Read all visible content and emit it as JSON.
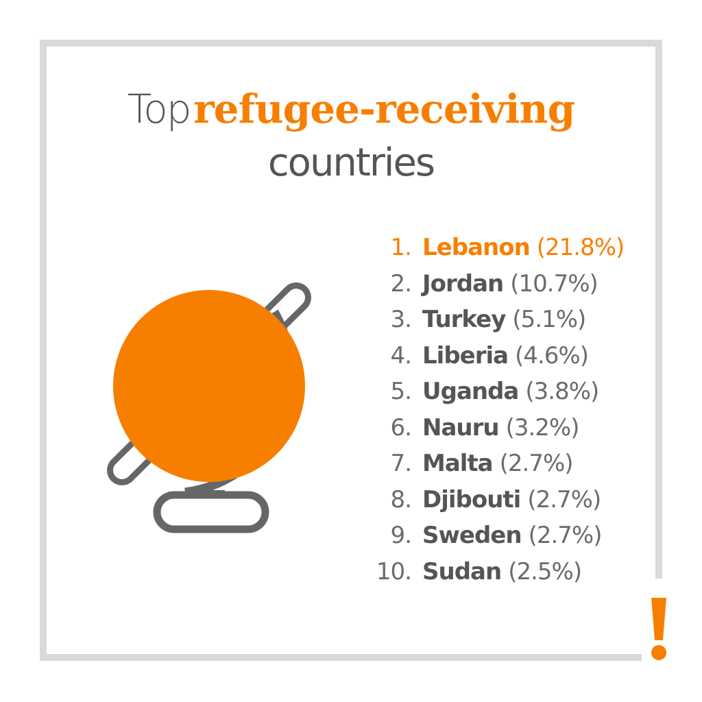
{
  "title": {
    "light": "Top",
    "accent": "refugee-receiving",
    "line2": "countries"
  },
  "colors": {
    "accent": "#f77f00",
    "text": "#555555",
    "frame": "#d9d9d9",
    "globe_stroke": "#666666"
  },
  "ranking": [
    {
      "rank": "1.",
      "country": "Lebanon",
      "share": "(21.8%)",
      "highlight": true
    },
    {
      "rank": "2.",
      "country": "Jordan",
      "share": "(10.7%)"
    },
    {
      "rank": "3.",
      "country": "Turkey",
      "share": "(5.1%)"
    },
    {
      "rank": "4.",
      "country": "Liberia",
      "share": "(4.6%)"
    },
    {
      "rank": "5.",
      "country": "Uganda",
      "share": "(3.8%)"
    },
    {
      "rank": "6.",
      "country": "Nauru",
      "share": "(3.2%)"
    },
    {
      "rank": "7.",
      "country": "Malta",
      "share": "(2.7%)"
    },
    {
      "rank": "8.",
      "country": "Djibouti",
      "share": "(2.7%)"
    },
    {
      "rank": "9.",
      "country": "Sweden",
      "share": "(2.7%)"
    },
    {
      "rank": "10.",
      "country": "Sudan",
      "share": "(2.5%)"
    }
  ],
  "icons": {
    "globe": "globe-icon",
    "exclamation": "exclamation-icon"
  }
}
